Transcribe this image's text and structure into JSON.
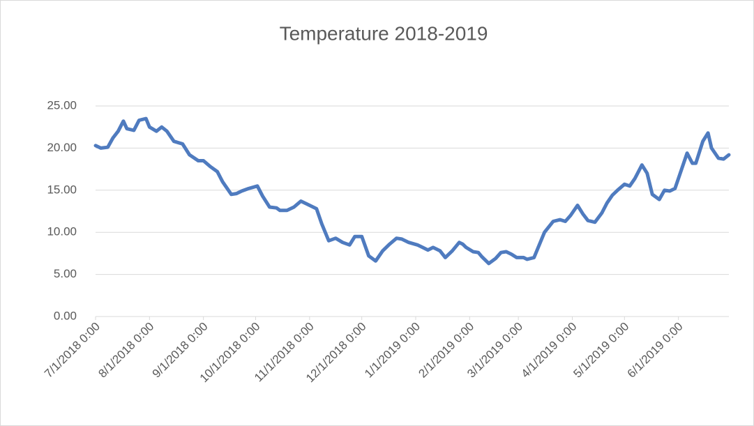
{
  "chart_data": {
    "type": "line",
    "title": "Temperature 2018-2019",
    "x": [
      "2018-07-01",
      "2018-07-04",
      "2018-07-08",
      "2018-07-11",
      "2018-07-14",
      "2018-07-17",
      "2018-07-19",
      "2018-07-23",
      "2018-07-26",
      "2018-07-30",
      "2018-08-01",
      "2018-08-05",
      "2018-08-08",
      "2018-08-11",
      "2018-08-15",
      "2018-08-20",
      "2018-08-24",
      "2018-08-29",
      "2018-09-01",
      "2018-09-05",
      "2018-09-09",
      "2018-09-12",
      "2018-09-17",
      "2018-09-20",
      "2018-09-23",
      "2018-09-27",
      "2018-10-02",
      "2018-10-05",
      "2018-10-09",
      "2018-10-13",
      "2018-10-15",
      "2018-10-19",
      "2018-10-23",
      "2018-10-27",
      "2018-10-31",
      "2018-11-05",
      "2018-11-08",
      "2018-11-12",
      "2018-11-16",
      "2018-11-20",
      "2018-11-24",
      "2018-11-27",
      "2018-12-01",
      "2018-12-05",
      "2018-12-09",
      "2018-12-13",
      "2018-12-17",
      "2018-12-21",
      "2018-12-24",
      "2018-12-28",
      "2019-01-02",
      "2019-01-05",
      "2019-01-08",
      "2019-01-11",
      "2019-01-15",
      "2019-01-18",
      "2019-01-22",
      "2019-01-26",
      "2019-01-28",
      "2019-01-30",
      "2019-02-03",
      "2019-02-06",
      "2019-02-08",
      "2019-02-12",
      "2019-02-16",
      "2019-02-19",
      "2019-02-22",
      "2019-02-25",
      "2019-02-28",
      "2019-03-04",
      "2019-03-06",
      "2019-03-10",
      "2019-03-13",
      "2019-03-16",
      "2019-03-21",
      "2019-03-25",
      "2019-03-28",
      "2019-03-31",
      "2019-04-04",
      "2019-04-07",
      "2019-04-10",
      "2019-04-14",
      "2019-04-18",
      "2019-04-21",
      "2019-04-24",
      "2019-04-27",
      "2019-05-01",
      "2019-05-04",
      "2019-05-07",
      "2019-05-11",
      "2019-05-14",
      "2019-05-17",
      "2019-05-21",
      "2019-05-24",
      "2019-05-27",
      "2019-05-30",
      "2019-06-02",
      "2019-06-06",
      "2019-06-09",
      "2019-06-11",
      "2019-06-15",
      "2019-06-18",
      "2019-06-20",
      "2019-06-24",
      "2019-06-27",
      "2019-06-30"
    ],
    "series": [
      {
        "name": "Temperature",
        "color": "#4f7bbf",
        "values": [
          20.3,
          20.0,
          20.1,
          21.2,
          22.0,
          23.2,
          22.3,
          22.1,
          23.3,
          23.5,
          22.5,
          22.0,
          22.5,
          22.0,
          20.8,
          20.5,
          19.2,
          18.5,
          18.5,
          17.8,
          17.2,
          16.0,
          14.5,
          14.6,
          14.9,
          15.2,
          15.5,
          14.3,
          13.0,
          12.9,
          12.6,
          12.6,
          13.0,
          13.7,
          13.3,
          12.8,
          11.0,
          9.0,
          9.3,
          8.8,
          8.5,
          9.5,
          9.5,
          7.2,
          6.6,
          7.8,
          8.6,
          9.3,
          9.2,
          8.8,
          8.5,
          8.2,
          7.9,
          8.2,
          7.8,
          7.0,
          7.8,
          8.8,
          8.6,
          8.2,
          7.7,
          7.6,
          7.1,
          6.3,
          6.9,
          7.6,
          7.7,
          7.4,
          7.0,
          7.0,
          6.8,
          7.0,
          8.5,
          10.0,
          11.3,
          11.5,
          11.3,
          12.0,
          13.2,
          12.2,
          11.4,
          11.2,
          12.3,
          13.5,
          14.4,
          15.0,
          15.7,
          15.5,
          16.4,
          18.0,
          17.0,
          14.5,
          13.9,
          15.0,
          14.9,
          15.2,
          17.0,
          19.4,
          18.2,
          18.2,
          20.8,
          21.8,
          20.0,
          18.8,
          18.7,
          19.2
        ]
      }
    ],
    "xlim": [
      "2018-07-01",
      "2019-06-30"
    ],
    "xticks": [
      {
        "value": "2018-07-01",
        "label": "7/1/2018 0:00"
      },
      {
        "value": "2018-08-01",
        "label": "8/1/2018 0:00"
      },
      {
        "value": "2018-09-01",
        "label": "9/1/2018 0:00"
      },
      {
        "value": "2018-10-01",
        "label": "10/1/2018 0:00"
      },
      {
        "value": "2018-11-01",
        "label": "11/1/2018 0:00"
      },
      {
        "value": "2018-12-01",
        "label": "12/1/2018 0:00"
      },
      {
        "value": "2019-01-01",
        "label": "1/1/2019 0:00"
      },
      {
        "value": "2019-02-01",
        "label": "2/1/2019 0:00"
      },
      {
        "value": "2019-03-01",
        "label": "3/1/2019 0:00"
      },
      {
        "value": "2019-04-01",
        "label": "4/1/2019 0:00"
      },
      {
        "value": "2019-05-01",
        "label": "5/1/2019 0:00"
      },
      {
        "value": "2019-06-01",
        "label": "6/1/2019 0:00"
      }
    ],
    "ylim": [
      0,
      25
    ],
    "yticks": [
      {
        "value": 0,
        "label": "0.00"
      },
      {
        "value": 5,
        "label": "5.00"
      },
      {
        "value": 10,
        "label": "10.00"
      },
      {
        "value": 15,
        "label": "15.00"
      },
      {
        "value": 20,
        "label": "20.00"
      },
      {
        "value": 25,
        "label": "25.00"
      }
    ],
    "grid": true
  }
}
